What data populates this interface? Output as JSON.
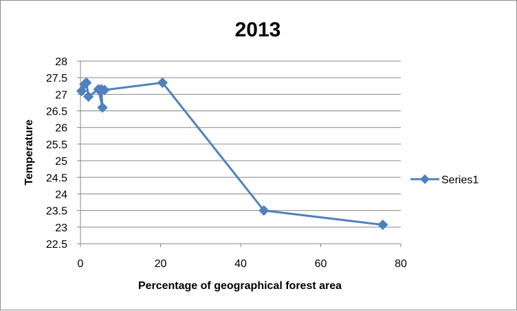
{
  "chart_data": {
    "type": "scatter",
    "title": "2013",
    "xlabel": "Percentage of geographical forest area",
    "ylabel": "Temperature",
    "xlim": [
      0,
      80
    ],
    "ylim": [
      22.5,
      28
    ],
    "x_ticks": [
      "0",
      "20",
      "40",
      "60",
      "80"
    ],
    "y_ticks": [
      "22.5",
      "23",
      "23.5",
      "24",
      "24.5",
      "25",
      "25.5",
      "26",
      "26.5",
      "27",
      "27.5",
      "28"
    ],
    "grid": "horizontal",
    "legend_position": "right",
    "line_color": "#4F81BD",
    "series": [
      {
        "name": "Series1",
        "marker": "diamond",
        "x": [
          0.3,
          1.0,
          1.5,
          2.0,
          4.5,
          5.5,
          5.2,
          6.0,
          20.5,
          45.8,
          75.5
        ],
        "y": [
          27.1,
          27.3,
          27.35,
          26.93,
          27.15,
          26.6,
          27.15,
          27.13,
          27.35,
          23.5,
          23.07
        ]
      }
    ]
  }
}
